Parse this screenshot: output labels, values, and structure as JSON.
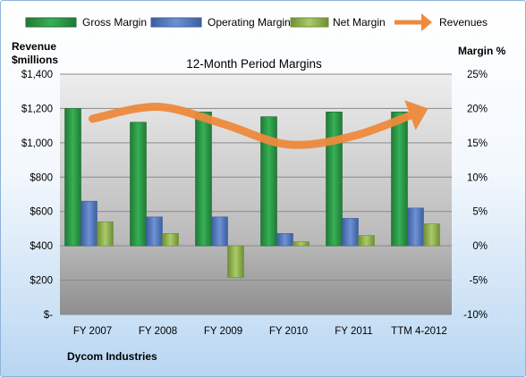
{
  "chart_data": {
    "type": "bar",
    "title": "12-Month Period Margins",
    "footer_text": "Dycom Industries",
    "categories": [
      "FY 2007",
      "FY 2008",
      "FY 2009",
      "FY 2010",
      "FY 2011",
      "TTM 4-2012"
    ],
    "left_axis": {
      "label_line1": "Revenue",
      "label_line2": "$millions",
      "range": [
        0,
        1400
      ],
      "ticks": [
        0,
        200,
        400,
        600,
        800,
        1000,
        1200,
        1400
      ],
      "tick_labels": [
        "$-",
        "$200",
        "$400",
        "$600",
        "$800",
        "$1,000",
        "$1,200",
        "$1,400"
      ]
    },
    "right_axis": {
      "label": "Margin %",
      "range": [
        -10,
        25
      ],
      "ticks": [
        -10,
        -5,
        0,
        5,
        10,
        15,
        20,
        25
      ],
      "tick_labels": [
        "-10%",
        "-5%",
        "0%",
        "5%",
        "10%",
        "15%",
        "20%",
        "25%"
      ]
    },
    "series": [
      {
        "name": "Gross Margin",
        "axis": "right",
        "color": "#2e9a4a",
        "values": [
          20.0,
          18.0,
          19.5,
          18.8,
          19.5,
          19.5
        ]
      },
      {
        "name": "Operating Margin",
        "axis": "right",
        "color": "#5a7fc4",
        "values": [
          6.5,
          4.2,
          4.2,
          1.8,
          4.0,
          5.5
        ]
      },
      {
        "name": "Net Margin",
        "axis": "right",
        "color": "#9ab95a",
        "values": [
          3.5,
          1.8,
          -4.6,
          0.6,
          1.5,
          3.2
        ]
      },
      {
        "name": "Revenues",
        "axis": "left",
        "type": "line",
        "color": "#ef8a3d",
        "values": [
          1140,
          1210,
          1110,
          990,
          1040,
          1180
        ]
      }
    ],
    "grid": true,
    "legend_position": "top"
  }
}
